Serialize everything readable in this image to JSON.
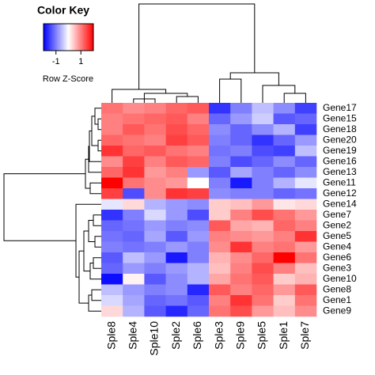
{
  "chart_data": {
    "type": "heatmap",
    "key_title": "Color Key",
    "key_label": "Row Z-Score",
    "zlim": [
      -2,
      2
    ],
    "key_ticks": [
      -1,
      1
    ],
    "colors": {
      "low": "#0000ff",
      "mid": "#ffffff",
      "high": "#ff0000"
    },
    "columns": [
      "Sple8",
      "Sple4",
      "Sple10",
      "Sple2",
      "Sple6",
      "Sple3",
      "Sple9",
      "Sple5",
      "Sple1",
      "Sple7"
    ],
    "rows": [
      "Gene17",
      "Gene15",
      "Gene18",
      "Gene20",
      "Gene19",
      "Gene16",
      "Gene13",
      "Gene11",
      "Gene12",
      "Gene14",
      "Gene7",
      "Gene2",
      "Gene5",
      "Gene4",
      "Gene6",
      "Gene3",
      "Gene10",
      "Gene8",
      "Gene1",
      "Gene9"
    ],
    "values": [
      [
        1.1,
        0.9,
        1.0,
        1.2,
        1.3,
        -1.6,
        -1.0,
        -0.5,
        -0.9,
        -1.5
      ],
      [
        1.0,
        1.1,
        1.2,
        1.3,
        1.0,
        -1.2,
        -0.8,
        -0.4,
        -1.3,
        -1.2
      ],
      [
        1.0,
        1.3,
        1.1,
        1.4,
        1.2,
        -0.9,
        -1.2,
        -0.9,
        -0.6,
        -1.5
      ],
      [
        1.2,
        1.1,
        1.0,
        1.5,
        1.3,
        -1.0,
        -1.2,
        -1.6,
        -1.2,
        -0.8
      ],
      [
        1.6,
        1.2,
        1.3,
        1.1,
        1.0,
        -1.1,
        -1.0,
        -1.4,
        -1.5,
        -0.5
      ],
      [
        0.9,
        1.5,
        1.0,
        1.3,
        1.2,
        -1.0,
        -1.4,
        -1.2,
        -0.9,
        -1.2
      ],
      [
        1.2,
        1.6,
        0.8,
        1.0,
        -0.8,
        -1.3,
        -0.7,
        -1.0,
        -1.2,
        -0.9
      ],
      [
        2.0,
        1.1,
        0.9,
        0.8,
        0.0,
        -1.0,
        -1.8,
        -1.0,
        -0.6,
        -0.2
      ],
      [
        1.5,
        -1.4,
        0.9,
        1.6,
        1.5,
        -0.9,
        -1.0,
        -1.0,
        -1.2,
        -1.1
      ],
      [
        -0.2,
        0.3,
        -0.6,
        -0.8,
        -0.9,
        0.4,
        0.5,
        0.8,
        0.2,
        0.3
      ],
      [
        -1.6,
        -1.0,
        -0.3,
        -0.8,
        -1.4,
        0.4,
        1.0,
        1.4,
        1.1,
        0.8
      ],
      [
        -1.2,
        -1.1,
        -0.8,
        -1.0,
        -0.9,
        1.3,
        0.7,
        0.6,
        1.2,
        1.0
      ],
      [
        -1.1,
        -1.2,
        -0.7,
        -1.3,
        -0.8,
        1.0,
        0.9,
        0.8,
        1.0,
        1.6
      ],
      [
        -1.0,
        -1.1,
        -1.0,
        -0.8,
        -1.0,
        0.9,
        1.6,
        1.0,
        1.1,
        0.8
      ],
      [
        -1.3,
        -0.5,
        -0.8,
        -1.8,
        -1.0,
        0.6,
        0.9,
        1.2,
        2.0,
        1.1
      ],
      [
        -1.2,
        -0.8,
        -1.0,
        -0.8,
        -0.6,
        0.5,
        1.0,
        1.4,
        1.0,
        0.5
      ],
      [
        -1.9,
        0.1,
        -1.3,
        -0.9,
        -0.6,
        0.7,
        1.1,
        1.3,
        0.4,
        0.6
      ],
      [
        -0.5,
        -0.8,
        -1.0,
        -0.9,
        -1.7,
        1.3,
        1.0,
        1.2,
        0.8,
        1.3
      ],
      [
        -0.3,
        -0.7,
        -1.2,
        -1.1,
        -1.3,
        1.0,
        1.6,
        1.1,
        0.4,
        1.1
      ],
      [
        0.3,
        -0.6,
        -1.3,
        -1.7,
        -1.2,
        1.1,
        1.4,
        0.8,
        0.5,
        0.9
      ]
    ]
  }
}
